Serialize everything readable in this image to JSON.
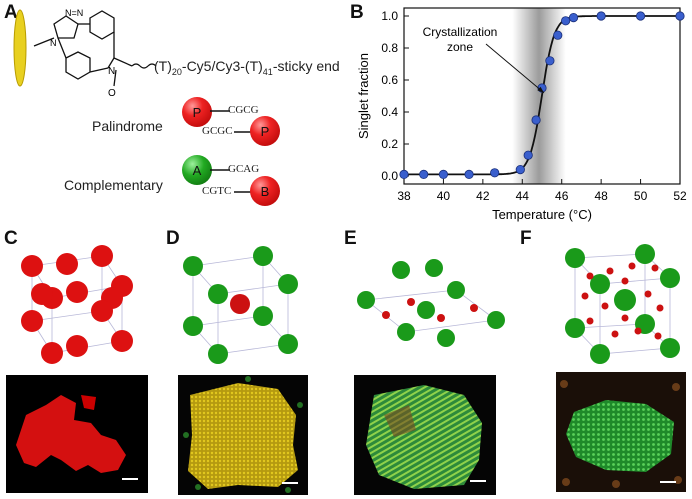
{
  "panels": {
    "A": "A",
    "B": "B",
    "C": "C",
    "D": "D",
    "E": "E",
    "F": "F"
  },
  "panel_a": {
    "chain_label": "(T)",
    "chain_sub1": "20",
    "chain_mid": "-Cy5/Cy3-(T)",
    "chain_sub2": "41",
    "chain_end": "-sticky end",
    "palindrome_label": "Palindrome",
    "complementary_label": "Complementary",
    "seq_p1": "CGCG",
    "seq_p2": "GCGC",
    "seq_a": "GCAG",
    "seq_b": "CGTC",
    "ball_p": "P",
    "ball_a": "A",
    "ball_b": "B"
  },
  "chart_data": {
    "type": "scatter",
    "ylabel": "Singlet fraction",
    "xlabel": "Temperature (°C)",
    "annotation": "Crystallization\nzone",
    "annotation_line1": "Crystallization",
    "annotation_line2": "zone",
    "xlim": [
      38,
      52
    ],
    "ylim": [
      0.0,
      1.0
    ],
    "xticks": [
      38,
      40,
      42,
      44,
      46,
      48,
      50,
      52
    ],
    "yticks": [
      0.0,
      0.2,
      0.4,
      0.6,
      0.8,
      1.0
    ],
    "shaded_zone": [
      43.5,
      46.2
    ],
    "points": [
      {
        "x": 38.0,
        "y": 0.01
      },
      {
        "x": 39.0,
        "y": 0.01
      },
      {
        "x": 40.0,
        "y": 0.01
      },
      {
        "x": 41.3,
        "y": 0.01
      },
      {
        "x": 42.6,
        "y": 0.02
      },
      {
        "x": 43.9,
        "y": 0.04
      },
      {
        "x": 44.3,
        "y": 0.13
      },
      {
        "x": 44.7,
        "y": 0.35
      },
      {
        "x": 45.0,
        "y": 0.55
      },
      {
        "x": 45.4,
        "y": 0.72
      },
      {
        "x": 45.8,
        "y": 0.88
      },
      {
        "x": 46.2,
        "y": 0.97
      },
      {
        "x": 46.6,
        "y": 0.99
      },
      {
        "x": 48.0,
        "y": 1.0
      },
      {
        "x": 50.0,
        "y": 1.0
      },
      {
        "x": 52.0,
        "y": 1.0
      }
    ],
    "colors": {
      "marker": "#3a5fcd",
      "curve": "#111111",
      "shade": "#9a9a9a"
    }
  }
}
